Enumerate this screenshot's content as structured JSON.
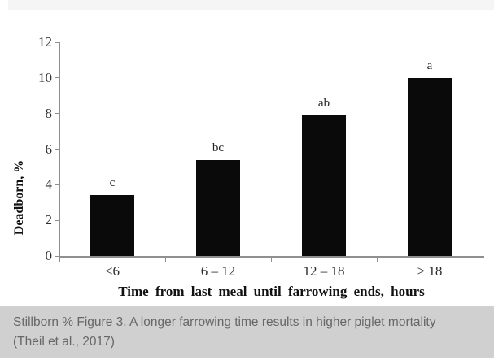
{
  "chart_data": {
    "type": "bar",
    "title": "",
    "categories": [
      "<6",
      "6 – 12",
      "12 – 18",
      "> 18"
    ],
    "values": [
      3.4,
      5.4,
      7.9,
      10.0
    ],
    "significance_letters": [
      "c",
      "bc",
      "ab",
      "a"
    ],
    "xlabel": "Time from last meal until farrowing ends, hours",
    "ylabel": "Deadborn, %",
    "ylim": [
      0,
      12
    ],
    "ytick_step": 2,
    "grid": false,
    "legend": null,
    "bar_color": "#0a0a0a",
    "axis_color": "#8f8f8f"
  },
  "caption": {
    "text": "Stillborn % Figure 3. A longer farrowing time results in higher piglet mortality (Theil et al., 2017)",
    "background": "#d0d0d0",
    "text_color": "#676767"
  }
}
